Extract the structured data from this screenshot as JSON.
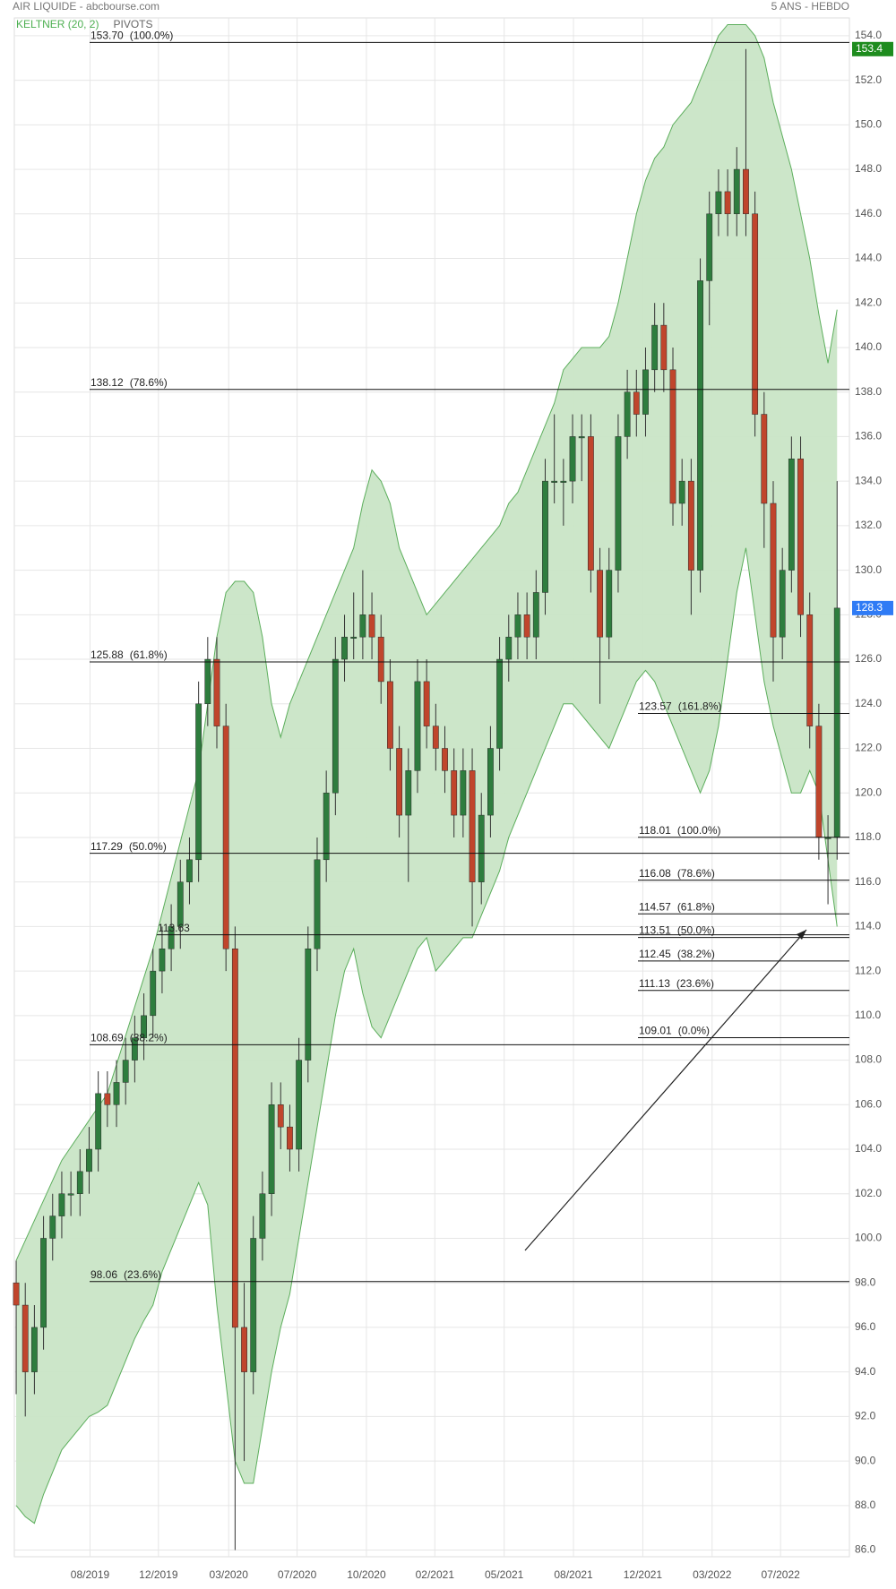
{
  "chart_data": {
    "type": "candlestick",
    "title": "AIR LIQUIDE - abcbourse.com",
    "subtitle": "5 ANS - HEBDO",
    "indicators": [
      {
        "name": "KELTNER (20, 2)",
        "color": "#4caf50"
      },
      {
        "name": "PIVOTS",
        "color": "#666666"
      }
    ],
    "up_color": "#2e7d3e",
    "down_color": "#c0452c",
    "band_color": "#5cae5c",
    "band_fill": "#c9e5c6",
    "xlim": [
      -0.2,
      91.35
    ],
    "xticks": [
      {
        "value": 8.1,
        "label": "08/2019"
      },
      {
        "value": 15.6,
        "label": "12/2019"
      },
      {
        "value": 23.3,
        "label": "03/2020"
      },
      {
        "value": 30.8,
        "label": "07/2020"
      },
      {
        "value": 38.4,
        "label": "10/2020"
      },
      {
        "value": 45.9,
        "label": "02/2021"
      },
      {
        "value": 53.5,
        "label": "05/2021"
      },
      {
        "value": 61.1,
        "label": "08/2021"
      },
      {
        "value": 68.7,
        "label": "12/2021"
      },
      {
        "value": 76.3,
        "label": "03/2022"
      },
      {
        "value": 83.8,
        "label": "07/2022"
      }
    ],
    "ylim": [
      85.7,
      154.8
    ],
    "yticks": [
      {
        "value": 86,
        "label": "86.0"
      },
      {
        "value": 88,
        "label": "88.0"
      },
      {
        "value": 90,
        "label": "90.0"
      },
      {
        "value": 92,
        "label": "92.0"
      },
      {
        "value": 94,
        "label": "94.0"
      },
      {
        "value": 96,
        "label": "96.0"
      },
      {
        "value": 98,
        "label": "98.0"
      },
      {
        "value": 100,
        "label": "100.0"
      },
      {
        "value": 102,
        "label": "102.0"
      },
      {
        "value": 104,
        "label": "104.0"
      },
      {
        "value": 106,
        "label": "106.0"
      },
      {
        "value": 108,
        "label": "108.0"
      },
      {
        "value": 110,
        "label": "110.0"
      },
      {
        "value": 112,
        "label": "112.0"
      },
      {
        "value": 114,
        "label": "114.0"
      },
      {
        "value": 116,
        "label": "116.0"
      },
      {
        "value": 118,
        "label": "118.0"
      },
      {
        "value": 120,
        "label": "120.0"
      },
      {
        "value": 122,
        "label": "122.0"
      },
      {
        "value": 124,
        "label": "124.0"
      },
      {
        "value": 126,
        "label": "126.0"
      },
      {
        "value": 128,
        "label": "128.0"
      },
      {
        "value": 130,
        "label": "130.0"
      },
      {
        "value": 132,
        "label": "132.0"
      },
      {
        "value": 134,
        "label": "134.0"
      },
      {
        "value": 136,
        "label": "136.0"
      },
      {
        "value": 138,
        "label": "138.0"
      },
      {
        "value": 140,
        "label": "140.0"
      },
      {
        "value": 142,
        "label": "142.0"
      },
      {
        "value": 144,
        "label": "144.0"
      },
      {
        "value": 146,
        "label": "146.0"
      },
      {
        "value": 148,
        "label": "148.0"
      },
      {
        "value": 150,
        "label": "150.0"
      },
      {
        "value": 152,
        "label": "152.0"
      },
      {
        "value": 154,
        "label": "154.0"
      }
    ],
    "grid": true,
    "ohlc": {
      "open": [
        98,
        97,
        94,
        96,
        100,
        101,
        102,
        102,
        103,
        104,
        106.5,
        106,
        107,
        108,
        109,
        110,
        112,
        113,
        114,
        116,
        117,
        124,
        126,
        123,
        113,
        96,
        94,
        100,
        102,
        106,
        105,
        104,
        108,
        113,
        117,
        120,
        126,
        127,
        127,
        128,
        127,
        125,
        122,
        119,
        121,
        125,
        123,
        122,
        121,
        119,
        121,
        116,
        119,
        122,
        126,
        127,
        128,
        127,
        129,
        134,
        134,
        134,
        136,
        136,
        130,
        127,
        130,
        136,
        138,
        137,
        139,
        141,
        139,
        133,
        134,
        130,
        143,
        146,
        147,
        146,
        148,
        146,
        137,
        133,
        127,
        130,
        135,
        128,
        123,
        118,
        118
      ],
      "high": [
        99,
        98,
        97,
        101,
        102,
        103,
        103,
        104,
        105,
        107.5,
        107.5,
        108,
        109,
        110,
        111,
        113,
        114,
        115,
        117,
        118,
        125,
        127,
        127,
        124,
        114,
        98,
        101,
        103,
        107,
        107,
        106,
        109,
        114,
        118,
        121,
        127,
        128,
        129,
        130,
        129,
        128,
        126,
        123,
        122,
        126,
        126,
        124,
        123,
        122,
        122,
        122,
        120,
        123,
        127,
        128,
        129,
        129,
        130,
        135,
        137,
        135,
        137,
        137,
        137,
        131,
        131,
        137,
        139,
        139,
        140,
        142,
        142,
        140,
        135,
        135,
        144,
        147,
        148,
        148,
        149,
        153.4,
        147,
        138,
        134,
        131,
        136,
        136,
        129,
        124,
        119,
        134
      ],
      "low": [
        93,
        92,
        93,
        95,
        99,
        100,
        101,
        101,
        102,
        103,
        105,
        105,
        106,
        107,
        108,
        109,
        111,
        112,
        113,
        115,
        116,
        123,
        122,
        112,
        86,
        90,
        93,
        99,
        101,
        104,
        103,
        103,
        107,
        112,
        116,
        119,
        125,
        126,
        126,
        126,
        124,
        121,
        118,
        116,
        120,
        122,
        121,
        120,
        118,
        118,
        114,
        115,
        118,
        121,
        125,
        126,
        126,
        126,
        128,
        133,
        132,
        133,
        134,
        129,
        124,
        126,
        129,
        135,
        136,
        136,
        138,
        138,
        132,
        132,
        128,
        129,
        141,
        145,
        145,
        145,
        145,
        136,
        131,
        125,
        126,
        129,
        127,
        122,
        117,
        115,
        117
      ],
      "close": [
        97,
        94,
        96,
        100,
        101,
        102,
        102,
        103,
        104,
        106.5,
        106,
        107,
        108,
        109,
        110,
        112,
        113,
        114,
        116,
        117,
        124,
        126,
        123,
        113,
        96,
        94,
        100,
        102,
        106,
        105,
        104,
        108,
        113,
        117,
        120,
        126,
        127,
        127,
        128,
        127,
        125,
        122,
        119,
        121,
        125,
        123,
        122,
        121,
        119,
        121,
        116,
        119,
        122,
        126,
        127,
        128,
        127,
        129,
        134,
        134,
        134,
        136,
        136,
        130,
        127,
        130,
        136,
        138,
        137,
        139,
        141,
        139,
        133,
        134,
        130,
        143,
        146,
        147,
        146,
        148,
        146,
        137,
        133,
        127,
        130,
        135,
        128,
        123,
        118,
        118,
        128.3
      ]
    },
    "keltner": {
      "upper": [
        99,
        99.9,
        100.8,
        101.7,
        102.6,
        103.5,
        104.1,
        104.7,
        105.3,
        105.9,
        106.5,
        107.8,
        109.1,
        110.4,
        111.7,
        113,
        114.6,
        116.2,
        117.8,
        119.4,
        121,
        124,
        127,
        129,
        129.5,
        129.5,
        129,
        127,
        124,
        122.5,
        124,
        125,
        126,
        127,
        128,
        129,
        130,
        131,
        133,
        134.5,
        134,
        133,
        131,
        130,
        129,
        128,
        128.5,
        129,
        129.5,
        130,
        130.5,
        131,
        131.5,
        132,
        133,
        133.5,
        134.5,
        135.5,
        136.5,
        137.5,
        139,
        139.5,
        140,
        140,
        140,
        140.5,
        142,
        144,
        146,
        147.5,
        148.5,
        149,
        150,
        150.5,
        151,
        152,
        153,
        154,
        154.5,
        154.5,
        154.5,
        154,
        153,
        151,
        149.5,
        148,
        146,
        144,
        141.5,
        139.3,
        141.7
      ],
      "lower": [
        88,
        87.5,
        87.2,
        88.5,
        89.5,
        90.5,
        91,
        91.5,
        92,
        92.2,
        92.5,
        93.5,
        94.5,
        95.5,
        96.3,
        97,
        98.5,
        99.5,
        100.5,
        101.5,
        102.5,
        101.5,
        97,
        93.5,
        90,
        89,
        89,
        91.5,
        94,
        96,
        97.5,
        100,
        102.5,
        105,
        107.5,
        110,
        112,
        113,
        111,
        109.5,
        109,
        110,
        111,
        112,
        113,
        113.5,
        112,
        112.5,
        113,
        113.5,
        113.5,
        114.5,
        115.5,
        116.5,
        118,
        119,
        120,
        121,
        122,
        123,
        124,
        124,
        123.5,
        123,
        122.5,
        122,
        123,
        124,
        125,
        125.5,
        125,
        124,
        123,
        122,
        121,
        120,
        121,
        123,
        126,
        129,
        131,
        128,
        125,
        123,
        121.5,
        120,
        120,
        121,
        120,
        117,
        114
      ]
    },
    "fibonacci": [
      {
        "levels": [
          {
            "value": 153.7,
            "label": "153.70",
            "ratio": "(100.0%)"
          },
          {
            "value": 138.12,
            "label": "138.12",
            "ratio": "(78.6%)"
          },
          {
            "value": 125.88,
            "label": "125.88",
            "ratio": "(61.8%)"
          },
          {
            "value": 117.29,
            "label": "117.29",
            "ratio": "(50.0%)"
          },
          {
            "value": 108.69,
            "label": "108.69",
            "ratio": "(38.2%)"
          },
          {
            "value": 98.06,
            "label": "98.06",
            "ratio": "(23.6%)"
          }
        ]
      },
      {
        "levels": [
          {
            "value": 123.57,
            "label": "123.57",
            "ratio": "(161.8%)"
          },
          {
            "value": 118.01,
            "label": "118.01",
            "ratio": "(100.0%)"
          },
          {
            "value": 116.08,
            "label": "116.08",
            "ratio": "(78.6%)"
          },
          {
            "value": 114.57,
            "label": "114.57",
            "ratio": "(61.8%)"
          },
          {
            "value": 113.51,
            "label": "113.51",
            "ratio": "(50.0%)"
          },
          {
            "value": 112.45,
            "label": "112.45",
            "ratio": "(38.2%)"
          },
          {
            "value": 111.13,
            "label": "111.13",
            "ratio": "(23.6%)"
          },
          {
            "value": 109.01,
            "label": "109.01",
            "ratio": "(0.0%)"
          }
        ]
      },
      {
        "levels": [
          {
            "value": 113.63,
            "label": "113.63"
          }
        ]
      }
    ],
    "price_tags": [
      {
        "value": 153.4,
        "color": "#1e8c1e"
      },
      {
        "value": 128.3,
        "color": "#2f7bf5"
      }
    ]
  }
}
